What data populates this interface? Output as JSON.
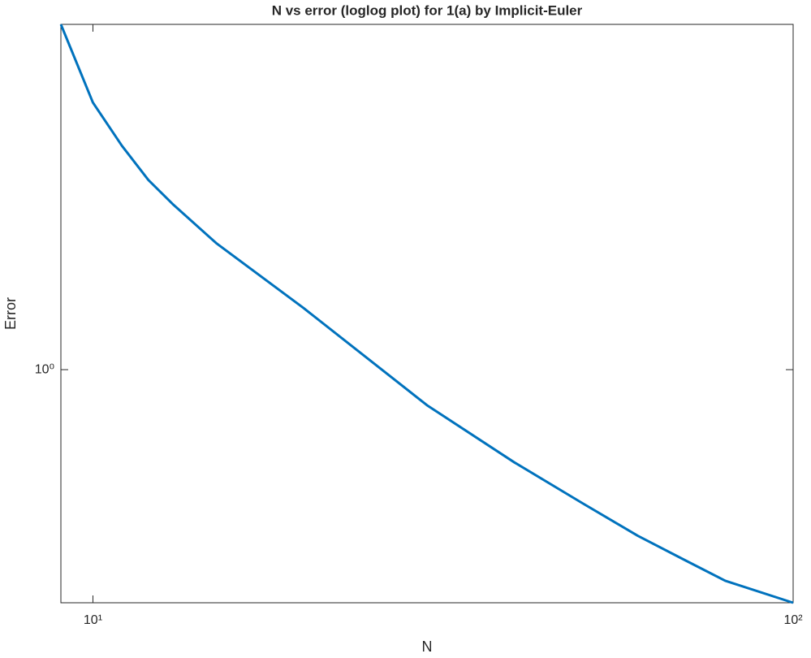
{
  "chart_data": {
    "type": "line",
    "title": "N vs error (loglog plot) for 1(a) by Implicit-Euler",
    "x_label": "N",
    "y_label": "Error",
    "x": [
      9,
      10,
      11,
      12,
      13,
      15,
      20,
      30,
      40,
      50,
      60,
      70,
      80,
      100
    ],
    "series": [
      {
        "color": "#0072bd",
        "values": [
          6.1,
          4.05,
          3.23,
          2.7,
          2.38,
          1.94,
          1.38,
          0.83,
          0.615,
          0.497,
          0.419,
          0.369,
          0.331,
          0.295
        ]
      }
    ],
    "x_log": true,
    "y_log": true,
    "xlim": [
      9,
      100
    ],
    "ylim": [
      0.295,
      6.1
    ],
    "xticks": [
      {
        "value": 10,
        "label": "10¹"
      },
      {
        "value": 100,
        "label": "10²"
      }
    ],
    "yticks": [
      {
        "value": 1,
        "label": "10⁰"
      }
    ]
  }
}
